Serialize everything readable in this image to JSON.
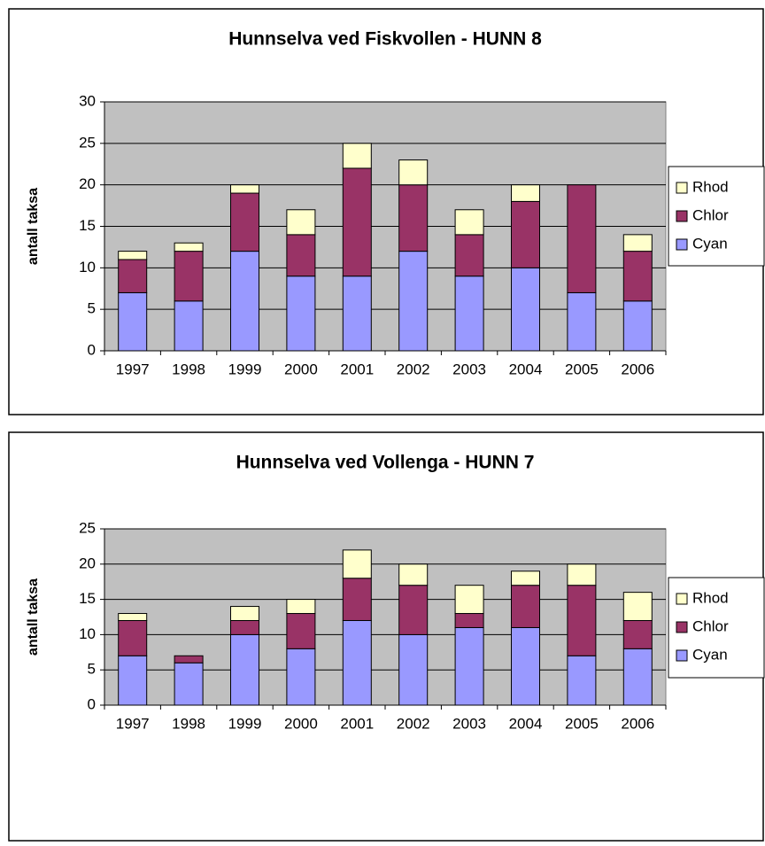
{
  "chart_data": [
    {
      "type": "bar",
      "stacked": true,
      "title": "Hunnselva ved Fiskvollen - HUNN 8",
      "y_label": "antall taksa",
      "categories": [
        "1997",
        "1998",
        "1999",
        "2000",
        "2001",
        "2002",
        "2003",
        "2004",
        "2005",
        "2006"
      ],
      "series": [
        {
          "name": "Cyan",
          "color": "#9999ff",
          "values": [
            7,
            6,
            12,
            9,
            9,
            12,
            9,
            10,
            7,
            6
          ]
        },
        {
          "name": "Chlor",
          "color": "#993366",
          "values": [
            4,
            6,
            7,
            5,
            13,
            8,
            5,
            8,
            13,
            6
          ]
        },
        {
          "name": "Rhod",
          "color": "#ffffcc",
          "values": [
            1,
            1,
            1,
            3,
            3,
            3,
            3,
            2,
            0,
            2
          ]
        }
      ],
      "ylim": [
        0,
        30
      ],
      "yticks": [
        0,
        5,
        10,
        15,
        20,
        25,
        30
      ],
      "grid": true,
      "legend": "right"
    },
    {
      "type": "bar",
      "stacked": true,
      "title": "Hunnselva ved Vollenga - HUNN 7",
      "y_label": "antall taksa",
      "categories": [
        "1997",
        "1998",
        "1999",
        "2000",
        "2001",
        "2002",
        "2003",
        "2004",
        "2005",
        "2006"
      ],
      "series": [
        {
          "name": "Cyan",
          "color": "#9999ff",
          "values": [
            7,
            6,
            10,
            8,
            12,
            10,
            11,
            11,
            7,
            8
          ]
        },
        {
          "name": "Chlor",
          "color": "#993366",
          "values": [
            5,
            1,
            2,
            5,
            6,
            7,
            2,
            6,
            10,
            4
          ]
        },
        {
          "name": "Rhod",
          "color": "#ffffcc",
          "values": [
            1,
            0,
            2,
            2,
            4,
            3,
            4,
            2,
            3,
            4
          ]
        }
      ],
      "ylim": [
        0,
        25
      ],
      "yticks": [
        0,
        5,
        10,
        15,
        20,
        25
      ],
      "grid": true,
      "legend": "right"
    }
  ]
}
